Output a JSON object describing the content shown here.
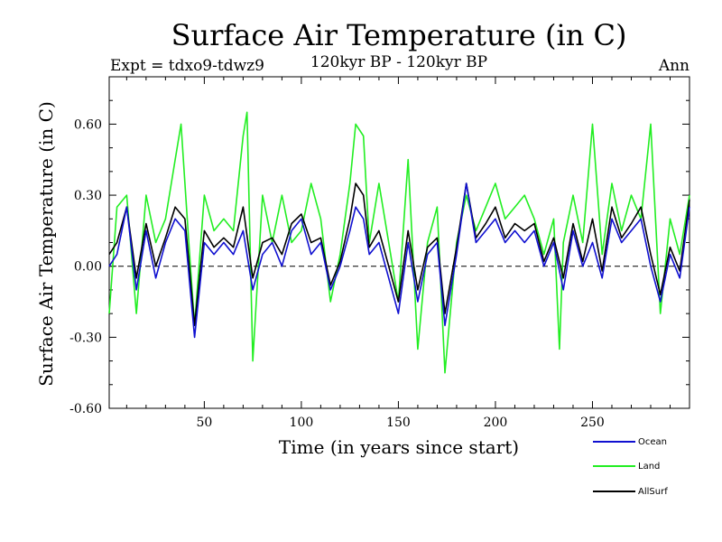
{
  "colors": {
    "ocean": "#1010d0",
    "land": "#22ee22",
    "allsurf": "#000000",
    "background": "#ffffff"
  },
  "chart_data": {
    "type": "line",
    "title": "Surface Air Temperature (in C)",
    "subtitle": "120kyr BP - 120kyr BP",
    "left_label": "Expt = tdxo9-tdwz9",
    "right_label": "Ann",
    "xlabel": "Time (in years since start)",
    "ylabel": "Surface Air Temperature (in C)",
    "xlim": [
      1,
      300
    ],
    "ylim": [
      -0.6,
      0.8
    ],
    "x_ticks": [
      50,
      100,
      150,
      200,
      250
    ],
    "x_tick_labels": [
      "50",
      "100",
      "150",
      "200",
      "250"
    ],
    "y_ticks": [
      -0.6,
      -0.3,
      0.0,
      0.3,
      0.6
    ],
    "y_tick_labels": [
      "-0.60",
      "-0.30",
      "0.00",
      "0.30",
      "0.60"
    ],
    "zero_line": "dashed",
    "grid": false,
    "legend_position": "below-right",
    "series": [
      {
        "name": "Ocean",
        "color_key": "ocean",
        "x": [
          1,
          5,
          10,
          15,
          20,
          25,
          30,
          35,
          40,
          45,
          50,
          55,
          60,
          65,
          70,
          75,
          80,
          85,
          90,
          95,
          100,
          105,
          110,
          115,
          120,
          125,
          128,
          132,
          135,
          140,
          145,
          150,
          155,
          160,
          165,
          170,
          174,
          180,
          185,
          190,
          195,
          200,
          205,
          210,
          215,
          220,
          225,
          230,
          235,
          240,
          245,
          250,
          255,
          260,
          265,
          270,
          275,
          280,
          285,
          290,
          295,
          300
        ],
        "values": [
          0.0,
          0.05,
          0.25,
          -0.1,
          0.15,
          -0.05,
          0.1,
          0.2,
          0.15,
          -0.3,
          0.1,
          0.05,
          0.1,
          0.05,
          0.15,
          -0.1,
          0.05,
          0.1,
          0.0,
          0.15,
          0.2,
          0.05,
          0.1,
          -0.1,
          0.0,
          0.15,
          0.25,
          0.2,
          0.05,
          0.1,
          -0.05,
          -0.2,
          0.1,
          -0.15,
          0.05,
          0.1,
          -0.25,
          0.05,
          0.35,
          0.1,
          0.15,
          0.2,
          0.1,
          0.15,
          0.1,
          0.15,
          0.0,
          0.1,
          -0.1,
          0.15,
          0.0,
          0.1,
          -0.05,
          0.2,
          0.1,
          0.15,
          0.2,
          0.0,
          -0.15,
          0.05,
          -0.05,
          0.25
        ]
      },
      {
        "name": "Land",
        "color_key": "land",
        "x": [
          1,
          5,
          10,
          15,
          20,
          25,
          30,
          35,
          38,
          42,
          45,
          50,
          55,
          60,
          65,
          70,
          72,
          75,
          80,
          85,
          90,
          95,
          100,
          105,
          110,
          115,
          120,
          125,
          128,
          132,
          135,
          140,
          145,
          150,
          155,
          160,
          165,
          170,
          174,
          180,
          185,
          190,
          195,
          200,
          205,
          210,
          215,
          220,
          225,
          230,
          233,
          235,
          240,
          245,
          250,
          255,
          260,
          265,
          270,
          275,
          280,
          285,
          290,
          295,
          300
        ],
        "values": [
          -0.2,
          0.25,
          0.3,
          -0.2,
          0.3,
          0.1,
          0.2,
          0.45,
          0.6,
          0.1,
          -0.25,
          0.3,
          0.15,
          0.2,
          0.15,
          0.55,
          0.65,
          -0.4,
          0.3,
          0.1,
          0.3,
          0.1,
          0.15,
          0.35,
          0.2,
          -0.15,
          0.05,
          0.35,
          0.6,
          0.55,
          0.1,
          0.35,
          0.1,
          -0.15,
          0.45,
          -0.35,
          0.1,
          0.25,
          -0.45,
          0.1,
          0.3,
          0.15,
          0.25,
          0.35,
          0.2,
          0.25,
          0.3,
          0.2,
          0.05,
          0.2,
          -0.35,
          0.1,
          0.3,
          0.1,
          0.6,
          0.05,
          0.35,
          0.15,
          0.3,
          0.2,
          0.6,
          -0.2,
          0.2,
          0.05,
          0.3
        ]
      },
      {
        "name": "AllSurf",
        "color_key": "allsurf",
        "x": [
          1,
          5,
          10,
          15,
          20,
          25,
          30,
          35,
          40,
          45,
          50,
          55,
          60,
          65,
          70,
          75,
          80,
          85,
          90,
          95,
          100,
          105,
          110,
          115,
          120,
          125,
          128,
          132,
          135,
          140,
          145,
          150,
          155,
          160,
          165,
          170,
          174,
          180,
          185,
          190,
          195,
          200,
          205,
          210,
          215,
          220,
          225,
          230,
          235,
          240,
          245,
          250,
          255,
          260,
          265,
          270,
          275,
          280,
          285,
          290,
          295,
          300
        ],
        "values": [
          0.05,
          0.1,
          0.25,
          -0.05,
          0.18,
          0.0,
          0.12,
          0.25,
          0.2,
          -0.25,
          0.15,
          0.08,
          0.12,
          0.08,
          0.25,
          -0.05,
          0.1,
          0.12,
          0.05,
          0.18,
          0.22,
          0.1,
          0.12,
          -0.08,
          0.02,
          0.2,
          0.35,
          0.3,
          0.08,
          0.15,
          0.0,
          -0.15,
          0.15,
          -0.1,
          0.08,
          0.12,
          -0.2,
          0.08,
          0.35,
          0.12,
          0.18,
          0.25,
          0.12,
          0.18,
          0.15,
          0.18,
          0.02,
          0.12,
          -0.05,
          0.18,
          0.02,
          0.2,
          -0.02,
          0.25,
          0.12,
          0.18,
          0.25,
          0.05,
          -0.12,
          0.08,
          -0.02,
          0.28
        ]
      }
    ]
  }
}
